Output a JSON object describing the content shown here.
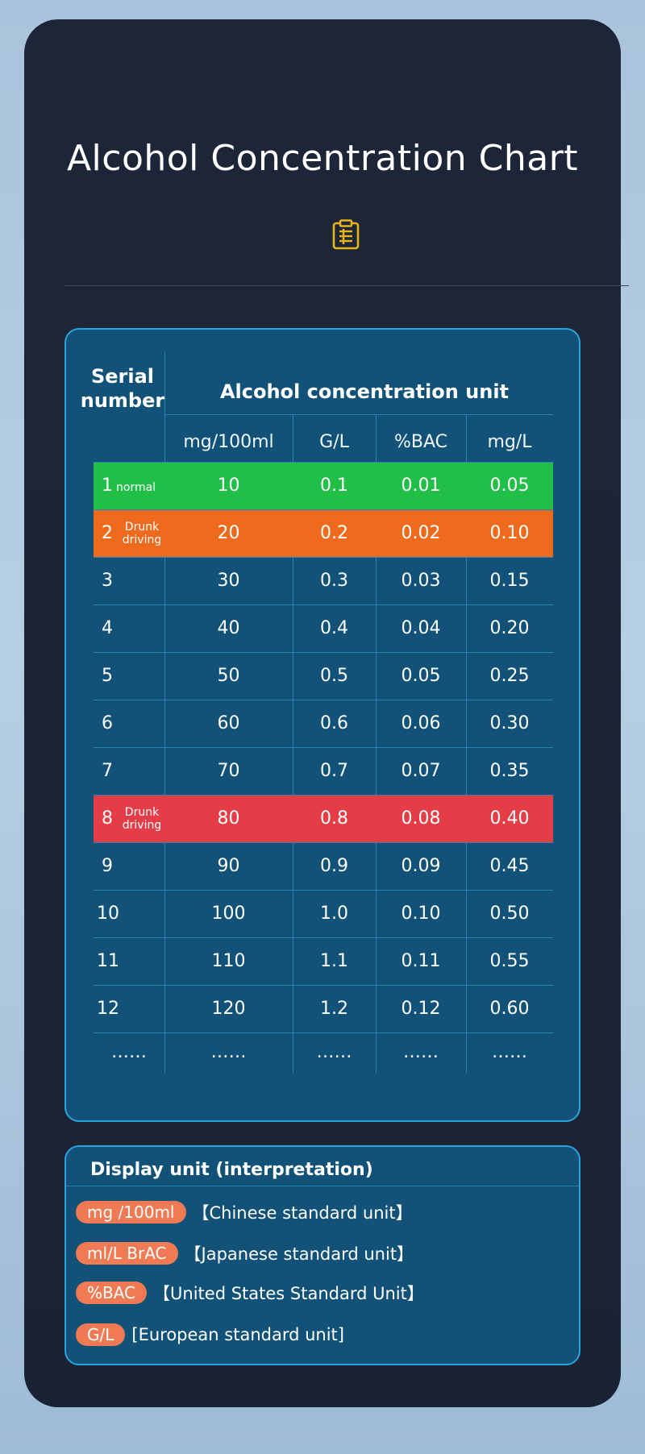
{
  "title": "Alcohol Concentration Chart",
  "icons": {
    "header_icon": "clipboard-icon"
  },
  "colors": {
    "accent_icon": "#e8b41a",
    "normal": "#22bf48",
    "drunk_driving": "#ee6b1d",
    "drunk_driving_high": "#e53d47",
    "pill": "#ef7a54",
    "panel": "#125279",
    "panel_border": "#2aa3dc"
  },
  "table": {
    "serial_header": "Serial\nnumber",
    "unit_header": "Alcohol concentration unit",
    "columns": [
      "mg/100ml",
      "G/L",
      "%BAC",
      "mg/L"
    ],
    "rows": [
      {
        "serial": "1",
        "note": "normal",
        "highlight": "green",
        "values": [
          "10",
          "0.1",
          "0.01",
          "0.05"
        ]
      },
      {
        "serial": "2",
        "note": "Drunk driving",
        "highlight": "orange",
        "values": [
          "20",
          "0.2",
          "0.02",
          "0.10"
        ]
      },
      {
        "serial": "3",
        "note": "",
        "highlight": "",
        "values": [
          "30",
          "0.3",
          "0.03",
          "0.15"
        ]
      },
      {
        "serial": "4",
        "note": "",
        "highlight": "",
        "values": [
          "40",
          "0.4",
          "0.04",
          "0.20"
        ]
      },
      {
        "serial": "5",
        "note": "",
        "highlight": "",
        "values": [
          "50",
          "0.5",
          "0.05",
          "0.25"
        ]
      },
      {
        "serial": "6",
        "note": "",
        "highlight": "",
        "values": [
          "60",
          "0.6",
          "0.06",
          "0.30"
        ]
      },
      {
        "serial": "7",
        "note": "",
        "highlight": "",
        "values": [
          "70",
          "0.7",
          "0.07",
          "0.35"
        ]
      },
      {
        "serial": "8",
        "note": "Drunk driving",
        "highlight": "red",
        "values": [
          "80",
          "0.8",
          "0.08",
          "0.40"
        ]
      },
      {
        "serial": "9",
        "note": "",
        "highlight": "",
        "values": [
          "90",
          "0.9",
          "0.09",
          "0.45"
        ]
      },
      {
        "serial": "10",
        "note": "",
        "highlight": "",
        "values": [
          "100",
          "1.0",
          "0.10",
          "0.50"
        ]
      },
      {
        "serial": "11",
        "note": "",
        "highlight": "",
        "values": [
          "110",
          "1.1",
          "0.11",
          "0.55"
        ]
      },
      {
        "serial": "12",
        "note": "",
        "highlight": "",
        "values": [
          "120",
          "1.2",
          "0.12",
          "0.60"
        ]
      }
    ],
    "ellipsis": "……"
  },
  "legend": {
    "title": "Display unit (interpretation)",
    "items": [
      {
        "unit": "mg /100ml",
        "desc": "【Chinese standard unit】"
      },
      {
        "unit": "ml/L BrAC",
        "desc": "【Japanese standard unit】"
      },
      {
        "unit": "%BAC",
        "desc": "【United States Standard Unit】"
      },
      {
        "unit": "G/L",
        "desc": "[European standard unit]"
      }
    ]
  }
}
